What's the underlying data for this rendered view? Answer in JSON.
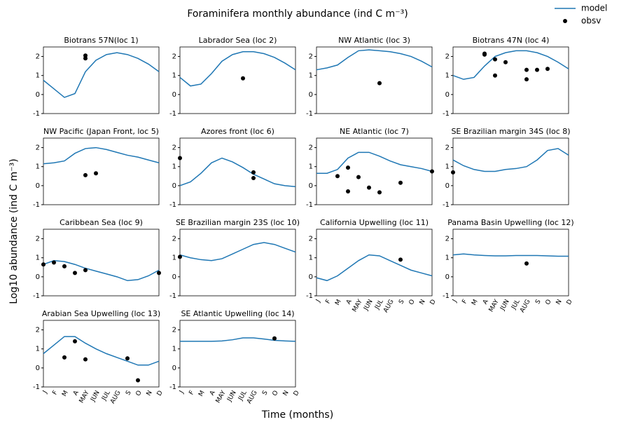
{
  "title": "Foraminifera monthly abundance (ind C m⁻³)",
  "x_label": "Time (months)",
  "y_label": "Log10 abundance (ind C m⁻³)",
  "legend": [
    {
      "name": "model",
      "color": "#1f77b4"
    },
    {
      "name": "obsv",
      "color": "#000000"
    }
  ],
  "categories": [
    "J",
    "F",
    "M",
    "A",
    "MAY",
    "JUN",
    "JUL",
    "AUG",
    "S",
    "O",
    "N",
    "D"
  ],
  "ylim": [
    -1,
    2.5
  ],
  "yticks": [
    -1,
    0,
    1,
    2
  ],
  "chart_data": [
    {
      "type": "line",
      "title": "Biotrans 57N(loc 1)",
      "model": [
        0.75,
        0.3,
        -0.15,
        0.05,
        1.2,
        1.8,
        2.1,
        2.2,
        2.1,
        1.9,
        1.6,
        1.2
      ],
      "obsv_x": [
        4,
        4
      ],
      "obsv_y": [
        2.05,
        1.9
      ]
    },
    {
      "type": "line",
      "title": "Labrador Sea (loc 2)",
      "model": [
        0.9,
        0.45,
        0.55,
        1.1,
        1.75,
        2.1,
        2.25,
        2.25,
        2.15,
        1.95,
        1.65,
        1.3
      ],
      "obsv_x": [
        6
      ],
      "obsv_y": [
        0.85
      ]
    },
    {
      "type": "line",
      "title": "NW Atlantic (loc 3)",
      "model": [
        1.3,
        1.4,
        1.55,
        1.95,
        2.3,
        2.35,
        2.3,
        2.25,
        2.15,
        2.0,
        1.75,
        1.45
      ],
      "obsv_x": [
        6
      ],
      "obsv_y": [
        0.6
      ]
    },
    {
      "type": "line",
      "title": "Biotrans 47N (loc 4)",
      "model": [
        1.0,
        0.8,
        0.9,
        1.5,
        2.0,
        2.2,
        2.3,
        2.3,
        2.2,
        2.0,
        1.7,
        1.35
      ],
      "obsv_x": [
        3,
        3,
        4,
        4,
        5,
        7,
        7,
        8,
        9
      ],
      "obsv_y": [
        2.1,
        2.15,
        1.85,
        1.0,
        1.7,
        1.3,
        0.8,
        1.3,
        1.35
      ]
    },
    {
      "type": "line",
      "title": "NW Pacific (Japan Front, loc 5)",
      "model": [
        1.15,
        1.2,
        1.3,
        1.7,
        1.95,
        2.0,
        1.9,
        1.75,
        1.6,
        1.5,
        1.35,
        1.2
      ],
      "obsv_x": [
        4,
        5
      ],
      "obsv_y": [
        0.55,
        0.65
      ]
    },
    {
      "type": "line",
      "title": "Azores front (loc 6)",
      "model": [
        0.0,
        0.2,
        0.65,
        1.2,
        1.45,
        1.25,
        0.95,
        0.6,
        0.35,
        0.1,
        0.0,
        -0.05
      ],
      "obsv_x": [
        0,
        7,
        7
      ],
      "obsv_y": [
        1.45,
        0.7,
        0.4
      ]
    },
    {
      "type": "line",
      "title": "NE Atlantic (loc 7)",
      "model": [
        0.65,
        0.65,
        0.85,
        1.45,
        1.75,
        1.75,
        1.55,
        1.3,
        1.1,
        1.0,
        0.9,
        0.75
      ],
      "obsv_x": [
        2,
        3,
        3,
        4,
        5,
        6,
        8,
        11
      ],
      "obsv_y": [
        0.5,
        0.95,
        -0.3,
        0.45,
        -0.1,
        -0.35,
        0.15,
        0.75
      ]
    },
    {
      "type": "line",
      "title": "SE Brazilian margin 34S (loc 8)",
      "model": [
        1.35,
        1.05,
        0.85,
        0.75,
        0.75,
        0.85,
        0.9,
        1.0,
        1.35,
        1.85,
        1.95,
        1.6
      ],
      "obsv_x": [
        0
      ],
      "obsv_y": [
        0.7
      ]
    },
    {
      "type": "line",
      "title": "Caribbean Sea (loc 9)",
      "model": [
        0.65,
        0.85,
        0.8,
        0.65,
        0.45,
        0.3,
        0.15,
        0.0,
        -0.2,
        -0.15,
        0.05,
        0.35
      ],
      "obsv_x": [
        0,
        1,
        2,
        3,
        4,
        11
      ],
      "obsv_y": [
        0.65,
        0.75,
        0.55,
        0.2,
        0.35,
        0.2
      ]
    },
    {
      "type": "line",
      "title": "SE Brazilian margin 23S (loc 10)",
      "model": [
        1.15,
        1.0,
        0.9,
        0.85,
        0.95,
        1.2,
        1.45,
        1.7,
        1.8,
        1.7,
        1.5,
        1.3
      ],
      "obsv_x": [
        0
      ],
      "obsv_y": [
        1.05
      ]
    },
    {
      "type": "line",
      "title": "California Upwelling (loc 11)",
      "model": [
        -0.05,
        -0.2,
        0.05,
        0.45,
        0.85,
        1.15,
        1.1,
        0.85,
        0.6,
        0.35,
        0.2,
        0.05
      ],
      "obsv_x": [
        8
      ],
      "obsv_y": [
        0.9
      ]
    },
    {
      "type": "line",
      "title": "Panama Basin Upwelling (loc 12)",
      "model": [
        1.15,
        1.2,
        1.15,
        1.12,
        1.1,
        1.1,
        1.12,
        1.12,
        1.12,
        1.1,
        1.08,
        1.08
      ],
      "obsv_x": [
        7
      ],
      "obsv_y": [
        0.7
      ]
    },
    {
      "type": "line",
      "title": "Arabian Sea Upwelling (loc 13)",
      "model": [
        0.75,
        1.2,
        1.65,
        1.65,
        1.3,
        1.0,
        0.75,
        0.55,
        0.35,
        0.15,
        0.15,
        0.35
      ],
      "obsv_x": [
        2,
        3,
        4,
        8,
        9
      ],
      "obsv_y": [
        0.55,
        1.4,
        0.45,
        0.5,
        -0.65
      ]
    },
    {
      "type": "line",
      "title": "SE Atlantic Upwelling (loc 14)",
      "model": [
        1.4,
        1.4,
        1.4,
        1.4,
        1.42,
        1.48,
        1.58,
        1.58,
        1.52,
        1.45,
        1.42,
        1.4
      ],
      "obsv_x": [
        9
      ],
      "obsv_y": [
        1.55
      ]
    }
  ]
}
